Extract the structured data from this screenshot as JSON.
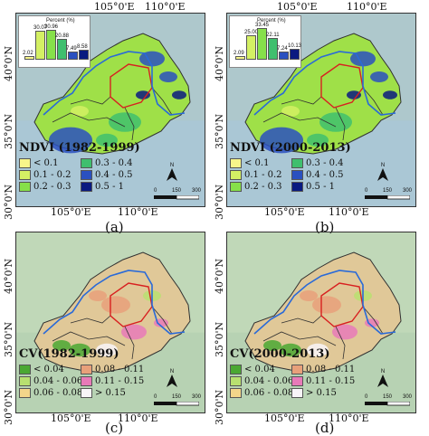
{
  "axes": {
    "lon_ticks": [
      "105°0'E",
      "110°0'E"
    ],
    "lat_ticks": [
      "40°0'N",
      "35°0'N",
      "30°0'N"
    ]
  },
  "panels": [
    {
      "id": "a",
      "caption": "(a)",
      "title": "NDVI (1982-1999)",
      "legend": [
        {
          "label": "< 0.1",
          "color": "#f7f58a"
        },
        {
          "label": "0.3 - 0.4",
          "color": "#3fbf6e"
        },
        {
          "label": "0.1 - 0.2",
          "color": "#d4f064"
        },
        {
          "label": "0.4 - 0.5",
          "color": "#2a50c0"
        },
        {
          "label": "0.2 - 0.3",
          "color": "#86e04a"
        },
        {
          "label": "0.5 - 1",
          "color": "#0a1a80"
        }
      ],
      "inset": {
        "title": "Percent (%)",
        "values": [
          2.02,
          30.07,
          30.96,
          20.88,
          7.49,
          8.58
        ],
        "labels": [
          "2.02",
          "30.07",
          "30.96",
          "20.88",
          "7.49",
          "8.58"
        ]
      },
      "scale": {
        "labels": [
          "0",
          "150",
          "300"
        ]
      },
      "north": "N"
    },
    {
      "id": "b",
      "caption": "(b)",
      "title": "NDVI (2000-2013)",
      "legend": [
        {
          "label": "< 0.1",
          "color": "#f7f58a"
        },
        {
          "label": "0.3 - 0.4",
          "color": "#3fbf6e"
        },
        {
          "label": "0.1 - 0.2",
          "color": "#d4f064"
        },
        {
          "label": "0.4 - 0.5",
          "color": "#2a50c0"
        },
        {
          "label": "0.2 - 0.3",
          "color": "#86e04a"
        },
        {
          "label": "0.5 - 1",
          "color": "#0a1a80"
        }
      ],
      "inset": {
        "title": "Percent (%)",
        "values": [
          2.09,
          25.0,
          33.45,
          22.11,
          7.24,
          10.13
        ],
        "labels": [
          "2.09",
          "25.00",
          "33.45",
          "22.11",
          "7.24",
          "10.13"
        ]
      },
      "scale": {
        "labels": [
          "0",
          "150",
          "300"
        ]
      },
      "north": "N"
    },
    {
      "id": "c",
      "caption": "(c)",
      "title": "CV(1982-1999)",
      "legend": [
        {
          "label": "< 0.04",
          "color": "#4aa832"
        },
        {
          "label": "0.08 - 0.11",
          "color": "#e8a07a"
        },
        {
          "label": "0.04 - 0.06",
          "color": "#b8e070"
        },
        {
          "label": "0.11 - 0.15",
          "color": "#e87ab8"
        },
        {
          "label": "0.06 - 0.08",
          "color": "#f2d58a"
        },
        {
          "label": "> 0.15",
          "color": "#f8f4f8"
        }
      ],
      "scale": {
        "labels": [
          "0",
          "150",
          "300"
        ]
      },
      "north": "N"
    },
    {
      "id": "d",
      "caption": "(d)",
      "title": "CV(2000-2013)",
      "legend": [
        {
          "label": "< 0.04",
          "color": "#4aa832"
        },
        {
          "label": "0.08 - 0.11",
          "color": "#e8a07a"
        },
        {
          "label": "0.04 - 0.06",
          "color": "#b8e070"
        },
        {
          "label": "0.11 - 0.15",
          "color": "#e87ab8"
        },
        {
          "label": "0.06 - 0.08",
          "color": "#f2d58a"
        },
        {
          "label": "> 0.15",
          "color": "#f8f4f8"
        }
      ],
      "scale": {
        "labels": [
          "0",
          "150",
          "300"
        ]
      },
      "north": "N"
    }
  ],
  "colors": {
    "background_top": "#aec8cc",
    "background_bottom": "#a8c6d8",
    "ndvi_fill": "#9fe048",
    "cv_fill": "#e0c898",
    "cv_bg": "#c0d8b8",
    "river": "#2a6ad8",
    "boundary_red": "#d82020",
    "boundary_dark": "#303030"
  },
  "inset_bar_colors": [
    "#f7f58a",
    "#d4f064",
    "#86e04a",
    "#3fbf6e",
    "#2a50c0",
    "#0a1a80"
  ]
}
